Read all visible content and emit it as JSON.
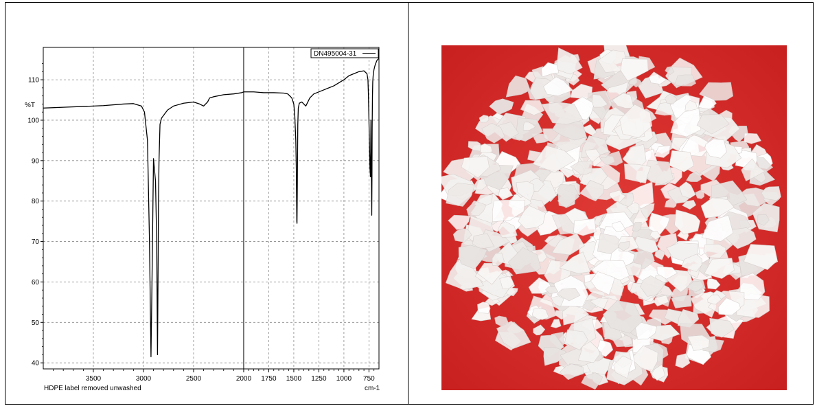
{
  "chart_data": {
    "type": "line",
    "legend": "DN495004-31",
    "ylabel": "%T",
    "xlabel": "HDPE label removed unwashed",
    "xunit": "cm-1",
    "xlim": [
      4000,
      650
    ],
    "ylim": [
      38.5,
      118
    ],
    "xticks": [
      3500,
      3000,
      2500,
      2000,
      1750,
      1500,
      1250,
      1000,
      750
    ],
    "yticks": [
      40,
      50,
      60,
      70,
      80,
      90,
      100,
      110
    ],
    "grid": true,
    "legend_position": "top-right",
    "series": [
      {
        "name": "DN495004-31",
        "x": [
          4000,
          3800,
          3600,
          3400,
          3200,
          3100,
          3020,
          2990,
          2960,
          2940,
          2925,
          2915,
          2900,
          2880,
          2868,
          2860,
          2855,
          2850,
          2845,
          2835,
          2820,
          2790,
          2760,
          2700,
          2600,
          2500,
          2440,
          2400,
          2360,
          2340,
          2300,
          2200,
          2100,
          2020,
          2000,
          1900,
          1800,
          1700,
          1600,
          1560,
          1540,
          1520,
          1500,
          1490,
          1480,
          1475,
          1472,
          1470,
          1468,
          1466,
          1463,
          1460,
          1455,
          1445,
          1420,
          1400,
          1380,
          1370,
          1360,
          1340,
          1300,
          1200,
          1100,
          1000,
          950,
          900,
          850,
          800,
          770,
          760,
          755,
          750,
          745,
          740,
          735,
          732,
          730,
          728,
          725,
          722,
          720,
          718,
          715,
          712,
          708,
          700,
          690,
          680,
          670,
          650
        ],
        "values": [
          103,
          103.2,
          103.4,
          103.6,
          104,
          104.1,
          103.5,
          102,
          95,
          70,
          41.5,
          60,
          90.5,
          85,
          70,
          42,
          60,
          80,
          90,
          99,
          100.5,
          101.5,
          102.5,
          103.5,
          104.2,
          104.5,
          104,
          103.5,
          104.5,
          105.5,
          105.8,
          106.3,
          106.5,
          106.8,
          107,
          107,
          106.8,
          106.8,
          106.7,
          106.5,
          106,
          105.5,
          104,
          101,
          95,
          88,
          80,
          75,
          74.5,
          80,
          90,
          99,
          103,
          104.2,
          104.5,
          104,
          103.5,
          104,
          104.5,
          105.5,
          106.5,
          107.5,
          108.5,
          110,
          111,
          111.5,
          112,
          112.2,
          111.5,
          110,
          106,
          100,
          94,
          88,
          86,
          95,
          100,
          92,
          85,
          76.5,
          85,
          98,
          106,
          109.5,
          111,
          112.5,
          113.5,
          114.2,
          114.8,
          115.3
        ]
      }
    ]
  },
  "photo": {
    "subject": "white plastic flakes",
    "background_color": "#d42b2b",
    "flake_color": "#f2f0ee"
  }
}
